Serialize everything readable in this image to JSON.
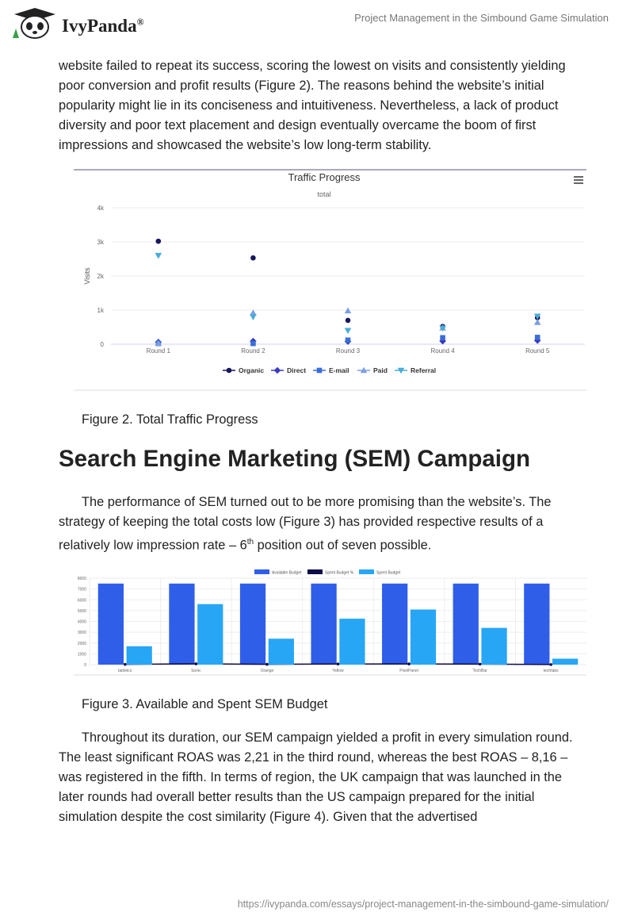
{
  "header": {
    "logo": "IvyPanda",
    "logo_mark": "®",
    "title": "Project Management in the Simbound Game Simulation"
  },
  "intro_paragraph": "website failed to repeat its success, scoring the lowest on visits and consistently yielding poor conversion and profit results (Figure 2). The reasons behind the website’s initial popularity might lie in its conciseness and intuitiveness. Nevertheless, a lack of product diversity and poor text placement and design eventually overcame the boom of first impressions and showcased the website’s low long-term stability.",
  "figure_captions": [
    "Figure 2. Total Traffic Progress",
    "Figure 3. Available and Spent SEM Budget"
  ],
  "heading": "Search Engine Marketing (SEM) Campaign",
  "sem_paragraph": {
    "before": "The performance of SEM turned out to be more promising than the website’s. The strategy of keeping the total costs low (Figure 3) has provided respective results of a relatively low impression rate – 6",
    "sup": "th",
    "after": " position out of seven possible."
  },
  "closing_paragraph": "Throughout its duration, our SEM campaign yielded a profit in every simulation round. The least significant ROAS was 2,21 in the third round, whereas the best ROAS – 8,16 – was registered in the fifth. In terms of region, the UK campaign that was launched in the later rounds had overall better results than the US campaign prepared for the initial simulation despite the cost similarity (Figure 4). Given that the advertised",
  "footer": {
    "url": "https://ivypanda.com/essays/project-management-in-the-simbound-game-simulation/"
  },
  "chart_data": [
    {
      "type": "line",
      "title": "Traffic Progress",
      "subtitle": "total",
      "y_label": "Visits",
      "categories": [
        "Round 1",
        "Round 2",
        "Round 3",
        "Round 4",
        "Round 5"
      ],
      "ylim": [
        0,
        4000
      ],
      "yticks": [
        0,
        {
          "value": 1000,
          "label": "1k"
        },
        {
          "value": 2000,
          "label": "2k"
        },
        {
          "value": 3000,
          "label": "3k"
        },
        {
          "value": 4000,
          "label": "4k"
        }
      ],
      "grid": true,
      "series": [
        {
          "name": "Organic",
          "color": "#16165c",
          "marker": "circle",
          "values": [
            3020,
            2530,
            700,
            520,
            780
          ]
        },
        {
          "name": "Direct",
          "color": "#3b3bc2",
          "marker": "diamond",
          "values": [
            60,
            90,
            80,
            90,
            110
          ]
        },
        {
          "name": "E-mail",
          "color": "#3a6ed8",
          "marker": "square",
          "values": [
            20,
            20,
            120,
            190,
            200
          ]
        },
        {
          "name": "Paid",
          "color": "#7c9fe2",
          "marker": "triangle",
          "values": [
            30,
            920,
            980,
            480,
            640
          ]
        },
        {
          "name": "Referral",
          "color": "#47acd8",
          "marker": "triangle-down",
          "values": [
            2600,
            800,
            400,
            470,
            820
          ]
        }
      ]
    },
    {
      "type": "bar",
      "categories": [
        "tabletco",
        "Sonic",
        "Orange",
        "Yellow",
        "PixelPanel",
        "TechBar",
        "techfabs"
      ],
      "ylim": [
        0,
        8000
      ],
      "yticks": [
        0,
        1000,
        2000,
        3000,
        4000,
        5000,
        6000,
        7000,
        8000
      ],
      "grid": true,
      "series": [
        {
          "name": "Available Budget",
          "color": "#2f5ee8",
          "type": "bar",
          "values": [
            7500,
            7500,
            7500,
            7500,
            7500,
            7500,
            7500
          ]
        },
        {
          "name": "Spent Budget %",
          "color": "#0c0c4a",
          "type": "line",
          "values": [
            23,
            75,
            32,
            57,
            68,
            45,
            7
          ]
        },
        {
          "name": "Spent Budget",
          "color": "#27a6f5",
          "type": "bar",
          "values": [
            1700,
            5600,
            2400,
            4250,
            5100,
            3400,
            550
          ]
        }
      ]
    }
  ]
}
